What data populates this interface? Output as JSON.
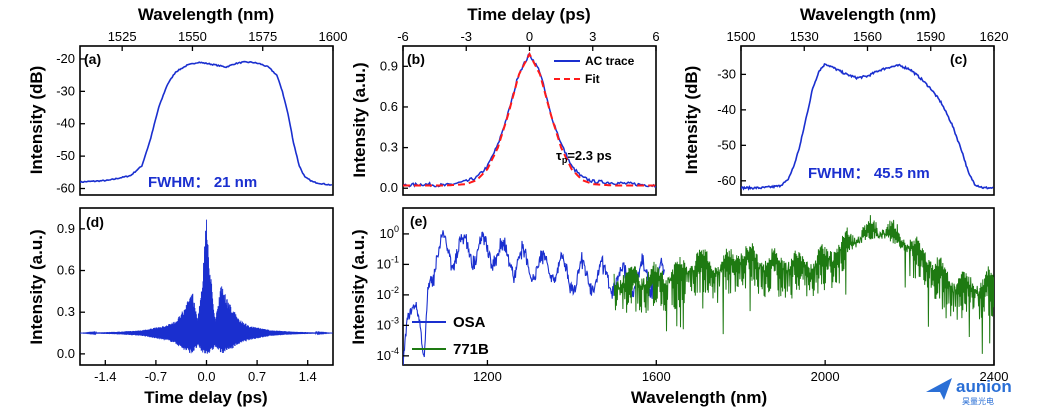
{
  "colors": {
    "blue": "#1a2fcf",
    "red": "#ff1a1a",
    "green": "#1e7a12"
  },
  "chart_data": [
    {
      "panel": "(a)",
      "type": "line",
      "xlabel": "Wavelength (nm)",
      "ylabel": "Intensity (dB)",
      "xlim": [
        1510,
        1600
      ],
      "ylim": [
        -62,
        -16
      ],
      "xticks": [
        "1525",
        "1550",
        "1575",
        "1600"
      ],
      "xtick_values": [
        1525,
        1550,
        1575,
        1600
      ],
      "yticks": [
        "-20",
        "-30",
        "-40",
        "-50",
        "-60"
      ],
      "ytick_values": [
        -20,
        -30,
        -40,
        -50,
        -60
      ],
      "annotation": "FWHM： 21 nm",
      "series": [
        {
          "color": "blue",
          "x": [
            1510,
            1520,
            1528,
            1532,
            1535,
            1538,
            1541,
            1544,
            1548,
            1552,
            1556,
            1559,
            1562,
            1565,
            1568,
            1571,
            1574,
            1577,
            1580,
            1582,
            1584,
            1586,
            1588,
            1590,
            1593,
            1596,
            1600
          ],
          "y": [
            -58,
            -57.5,
            -56,
            -53,
            -45,
            -35,
            -28,
            -24,
            -22,
            -21,
            -21.5,
            -22,
            -22.5,
            -21.5,
            -21,
            -21,
            -21.5,
            -22.5,
            -25,
            -30,
            -37,
            -46,
            -53,
            -56.5,
            -58,
            -58.5,
            -59
          ]
        }
      ]
    },
    {
      "panel": "(b)",
      "type": "line",
      "xlabel": "Time delay (ps)",
      "ylabel": "Intensity (a.u.)",
      "xlim": [
        -6,
        6
      ],
      "ylim": [
        -0.05,
        1.05
      ],
      "xticks": [
        "-6",
        "-3",
        "0",
        "3",
        "6"
      ],
      "xtick_values": [
        -6,
        -3,
        0,
        3,
        6
      ],
      "yticks": [
        "0.0",
        "0.3",
        "0.6",
        "0.9"
      ],
      "ytick_values": [
        0,
        0.3,
        0.6,
        0.9
      ],
      "legend": [
        "AC trace",
        "Fit"
      ],
      "annotation": "τp=2.3 ps",
      "series": [
        {
          "name": "AC trace",
          "color": "blue",
          "style": "solid",
          "x": [
            -6,
            -5,
            -4,
            -3,
            -2.5,
            -2,
            -1.5,
            -1,
            -0.5,
            0,
            0.5,
            1,
            1.5,
            2,
            2.5,
            3,
            4,
            5,
            6
          ],
          "y": [
            0.02,
            0.03,
            0.02,
            0.05,
            0.08,
            0.16,
            0.32,
            0.56,
            0.85,
            0.99,
            0.86,
            0.55,
            0.33,
            0.16,
            0.08,
            0.05,
            0.04,
            0.03,
            0.02
          ]
        },
        {
          "name": "Fit",
          "color": "red",
          "style": "dashed",
          "x": [
            -6,
            -4,
            -3,
            -2.5,
            -2,
            -1.5,
            -1,
            -0.5,
            0,
            0.5,
            1,
            1.5,
            2,
            2.5,
            3,
            4,
            6
          ],
          "y": [
            0.02,
            0.02,
            0.03,
            0.06,
            0.14,
            0.3,
            0.55,
            0.84,
            0.99,
            0.84,
            0.55,
            0.3,
            0.14,
            0.06,
            0.03,
            0.02,
            0.02
          ]
        }
      ]
    },
    {
      "panel": "(c)",
      "type": "line",
      "xlabel": "Wavelength (nm)",
      "ylabel": "Intensity (dB)",
      "xlim": [
        1500,
        1620
      ],
      "ylim": [
        -64,
        -22
      ],
      "xticks": [
        "1500",
        "1530",
        "1560",
        "1590",
        "1620"
      ],
      "xtick_values": [
        1500,
        1530,
        1560,
        1590,
        1620
      ],
      "yticks": [
        "-30",
        "-40",
        "-50",
        "-60"
      ],
      "ytick_values": [
        -30,
        -40,
        -50,
        -60
      ],
      "annotation": "FWHM： 45.5 nm",
      "series": [
        {
          "color": "blue",
          "x": [
            1500,
            1510,
            1518,
            1522,
            1525,
            1528,
            1531,
            1534,
            1537,
            1540,
            1545,
            1550,
            1555,
            1560,
            1565,
            1570,
            1575,
            1580,
            1585,
            1590,
            1595,
            1600,
            1605,
            1608,
            1611,
            1615,
            1620
          ],
          "y": [
            -62,
            -62,
            -61.5,
            -60,
            -56,
            -50,
            -42,
            -34,
            -29,
            -27,
            -28.5,
            -30,
            -31,
            -30.5,
            -29,
            -28,
            -27.5,
            -28.5,
            -31,
            -34,
            -38,
            -44,
            -52,
            -58,
            -61,
            -62,
            -62
          ]
        }
      ]
    },
    {
      "panel": "(d)",
      "type": "line",
      "xlabel": "Time delay (ps)",
      "ylabel": "Intensity (a.u.)",
      "xlim": [
        -1.75,
        1.75
      ],
      "ylim": [
        -0.08,
        1.05
      ],
      "xticks": [
        "-1.4",
        "-0.7",
        "0.0",
        "0.7",
        "1.4"
      ],
      "xtick_values": [
        -1.4,
        -0.7,
        0,
        0.7,
        1.4
      ],
      "yticks": [
        "0.0",
        "0.3",
        "0.6",
        "0.9"
      ],
      "ytick_values": [
        0,
        0.3,
        0.6,
        0.9
      ],
      "baseline": 0.15,
      "envelope": {
        "x": [
          -1.75,
          -1.2,
          -0.9,
          -0.6,
          -0.45,
          -0.3,
          -0.2,
          -0.12,
          -0.05,
          0,
          0.05,
          0.12,
          0.2,
          0.3,
          0.45,
          0.6,
          0.9,
          1.2,
          1.75
        ],
        "upper": [
          0.15,
          0.16,
          0.17,
          0.2,
          0.23,
          0.33,
          0.47,
          0.25,
          0.6,
          1.0,
          0.62,
          0.25,
          0.5,
          0.38,
          0.25,
          0.2,
          0.17,
          0.16,
          0.15
        ],
        "lower": [
          0.15,
          0.14,
          0.13,
          0.1,
          0.08,
          0.02,
          0.0,
          0.05,
          0.0,
          0.0,
          0.0,
          0.05,
          0.0,
          0.02,
          0.07,
          0.1,
          0.13,
          0.14,
          0.15
        ]
      }
    },
    {
      "panel": "(e)",
      "type": "line",
      "yscale": "log",
      "xlabel": "Wavelength (nm)",
      "ylabel": "Intensity (a.u.)",
      "xlim": [
        1000,
        2400
      ],
      "ylim_log10": [
        -4.3,
        0.85
      ],
      "xticks": [
        "1200",
        "1600",
        "2000",
        "2400"
      ],
      "xtick_values": [
        1200,
        1600,
        2000,
        2400
      ],
      "yticks": [
        "10-4",
        "10-3",
        "10-2",
        "10-1",
        "100"
      ],
      "ytick_values": [
        -4,
        -3,
        -2,
        -1,
        0
      ],
      "legend": [
        "OSA",
        "771B"
      ],
      "series": [
        {
          "name": "OSA",
          "color": "blue",
          "x": [
            1000,
            1010,
            1020,
            1030,
            1040,
            1050,
            1060,
            1070,
            1080,
            1090,
            1100,
            1150,
            1200,
            1250,
            1300,
            1350,
            1400,
            1450,
            1500,
            1550,
            1600,
            1620
          ],
          "y_log10": [
            -4.3,
            -2.8,
            -2.5,
            -2.3,
            -2.9,
            -4.2,
            -1.5,
            -0.9,
            -0.5,
            -0.3,
            -0.4,
            -0.3,
            -0.4,
            -0.6,
            -0.9,
            -0.9,
            -1.2,
            -1.2,
            -1.3,
            -1.3,
            -1.2,
            -1.5
          ]
        },
        {
          "name": "771B",
          "color": "green",
          "x": [
            1500,
            1550,
            1600,
            1650,
            1700,
            1750,
            1800,
            1850,
            1900,
            1950,
            2000,
            2050,
            2100,
            2120,
            2150,
            2200,
            2250,
            2300,
            2350,
            2400
          ],
          "y_log10": [
            -1.6,
            -1.5,
            -1.5,
            -1.4,
            -0.9,
            -1.2,
            -0.7,
            -1.0,
            -1.0,
            -1.1,
            -0.9,
            -0.4,
            0.05,
            0.1,
            0.0,
            -0.4,
            -1.0,
            -1.7,
            -1.8,
            -1.6
          ]
        }
      ]
    }
  ],
  "logo": {
    "name": "aunion",
    "sub": "昊量光电"
  }
}
